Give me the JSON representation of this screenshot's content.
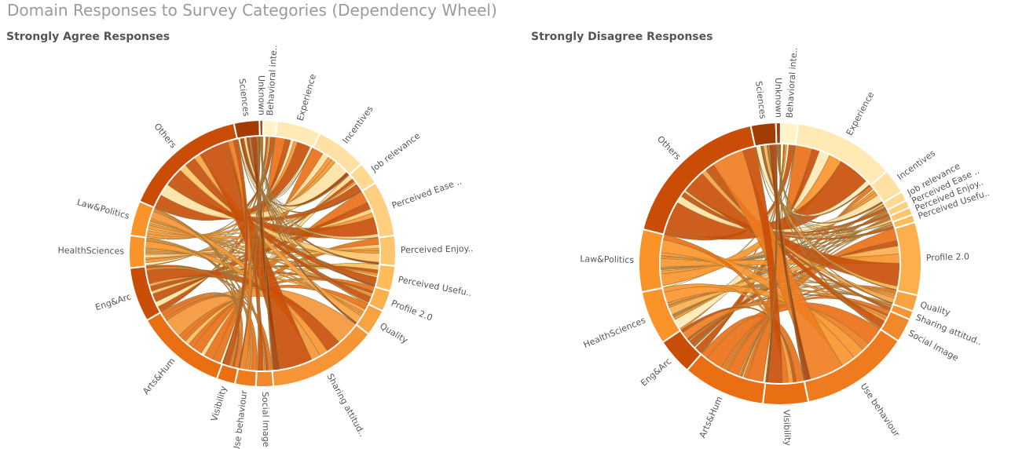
{
  "title": "Domain Responses to Survey Categories (Dependency Wheel)",
  "colors": {
    "source_ramp": [
      "#fff3c8",
      "#ffdc94",
      "#ffbc59",
      "#f9932a",
      "#ea6e12",
      "#c94d06",
      "#a23c03"
    ],
    "link_stroke": "#9a7a45",
    "gap": "#ffffff"
  },
  "chart_data": [
    {
      "type": "dependency-wheel",
      "subtitle": "Strongly Agree Responses",
      "nodes": [
        {
          "name": "Behavioral inte..",
          "value": 1.2
        },
        {
          "name": "Experience",
          "value": 3.8
        },
        {
          "name": "Incentives",
          "value": 4.4
        },
        {
          "name": "Job relevance",
          "value": 2.0
        },
        {
          "name": "Perceived Ease ..",
          "value": 4.8
        },
        {
          "name": "Perceived Enjoy..",
          "value": 2.6
        },
        {
          "name": "Perceived Usefu..",
          "value": 2.2
        },
        {
          "name": "Profile 2.0",
          "value": 1.8
        },
        {
          "name": "Quality",
          "value": 2.3
        },
        {
          "name": "Sharing attitud..",
          "value": 9.5
        },
        {
          "name": "Social Image",
          "value": 1.5
        },
        {
          "name": "Use behaviour",
          "value": 1.8
        },
        {
          "name": "Visibility",
          "value": 1.6
        },
        {
          "name": "Arts&Hum",
          "value": 7.9
        },
        {
          "name": "Eng&Arc",
          "value": 4.7
        },
        {
          "name": "HealthSciences",
          "value": 2.8
        },
        {
          "name": "Law&Politics",
          "value": 3.0
        },
        {
          "name": "Others",
          "value": 10.8
        },
        {
          "name": "Sciences",
          "value": 2.2
        },
        {
          "name": "Unknown",
          "value": 0.3
        }
      ]
    },
    {
      "type": "dependency-wheel",
      "subtitle": "Strongly Disagree Responses",
      "nodes": [
        {
          "name": "Behavioral inte..",
          "value": 1.8
        },
        {
          "name": "Experience",
          "value": 10.5
        },
        {
          "name": "Incentives",
          "value": 2.6
        },
        {
          "name": "Job relevance",
          "value": 1.0
        },
        {
          "name": "Perceived Ease ..",
          "value": 0.8
        },
        {
          "name": "Perceived Enjoy..",
          "value": 0.8
        },
        {
          "name": "Perceived Usefu..",
          "value": 0.8
        },
        {
          "name": "Profile 2.0",
          "value": 7.6
        },
        {
          "name": "Quality",
          "value": 1.7
        },
        {
          "name": "Sharing attitud..",
          "value": 0.9
        },
        {
          "name": "Social Image",
          "value": 2.5
        },
        {
          "name": "Use behaviour",
          "value": 11.4
        },
        {
          "name": "Visibility",
          "value": 4.7
        },
        {
          "name": "Arts&Hum",
          "value": 8.6
        },
        {
          "name": "Eng&Arc",
          "value": 3.8
        },
        {
          "name": "HealthSciences",
          "value": 5.6
        },
        {
          "name": "Law&Politics",
          "value": 6.5
        },
        {
          "name": "Others",
          "value": 16.1
        },
        {
          "name": "Sciences",
          "value": 2.6
        },
        {
          "name": "Unknown",
          "value": 0.5
        }
      ]
    }
  ]
}
